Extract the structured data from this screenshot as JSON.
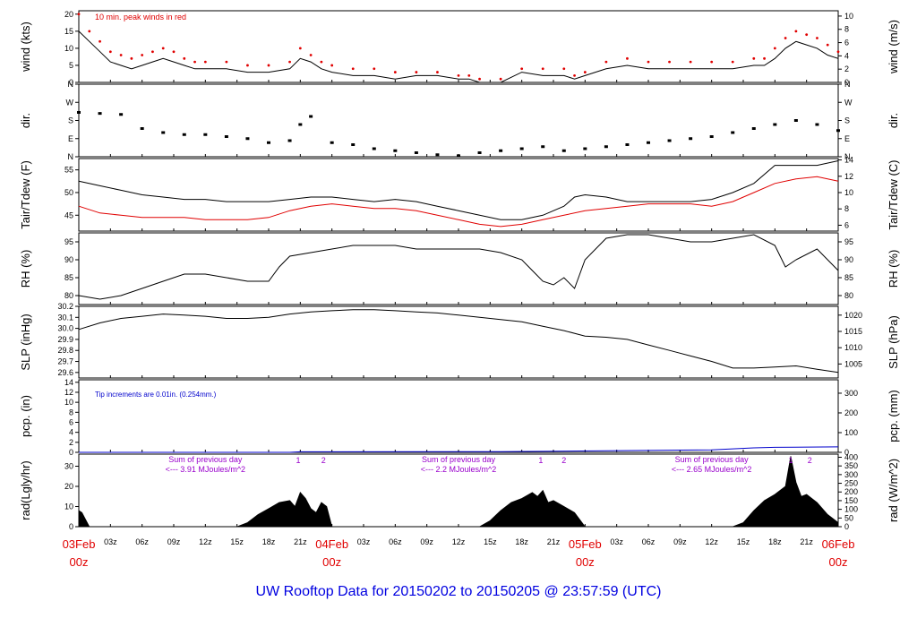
{
  "title": "UW Rooftop Data for 20150202  to  20150205 @ 23:57:59  (UTC)",
  "colors": {
    "title": "#0000e0",
    "red": "#e00000",
    "blue": "#0000cc",
    "purple": "#9900cc",
    "black": "#000000"
  },
  "x_axis": {
    "day_labels": [
      {
        "date": "03Feb",
        "time": "00z",
        "hour": 0
      },
      {
        "date": "04Feb",
        "time": "00z",
        "hour": 24
      },
      {
        "date": "05Feb",
        "time": "00z",
        "hour": 48
      },
      {
        "date": "06Feb",
        "time": "00z",
        "hour": 72
      }
    ],
    "hour_ticks": [
      {
        "h": 3,
        "t": "03z"
      },
      {
        "h": 6,
        "t": "06z"
      },
      {
        "h": 9,
        "t": "09z"
      },
      {
        "h": 12,
        "t": "12z"
      },
      {
        "h": 15,
        "t": "15z"
      },
      {
        "h": 18,
        "t": "18z"
      },
      {
        "h": 21,
        "t": "21z"
      },
      {
        "h": 27,
        "t": "03z"
      },
      {
        "h": 30,
        "t": "06z"
      },
      {
        "h": 33,
        "t": "09z"
      },
      {
        "h": 36,
        "t": "12z"
      },
      {
        "h": 39,
        "t": "15z"
      },
      {
        "h": 42,
        "t": "18z"
      },
      {
        "h": 45,
        "t": "21z"
      },
      {
        "h": 51,
        "t": "03z"
      },
      {
        "h": 54,
        "t": "06z"
      },
      {
        "h": 57,
        "t": "09z"
      },
      {
        "h": 60,
        "t": "12z"
      },
      {
        "h": 63,
        "t": "15z"
      },
      {
        "h": 66,
        "t": "18z"
      },
      {
        "h": 69,
        "t": "21z"
      }
    ]
  },
  "panels": {
    "wind": {
      "left_label": "wind (kts)",
      "right_label": "wind (m/s)",
      "left_ticks": [
        "0",
        "5",
        "10",
        "15",
        "20"
      ],
      "right_ticks": [
        "0",
        "2",
        "4",
        "6",
        "8",
        "10"
      ],
      "annotation": "10 min. peak winds in red"
    },
    "dir": {
      "left_label": "dir.",
      "right_label": "dir.",
      "left_ticks": [
        "N",
        "E",
        "S",
        "W",
        "N"
      ],
      "right_ticks": [
        "N",
        "E",
        "S",
        "W",
        "N"
      ]
    },
    "temp": {
      "left_label": "Tair/Tdew (F)",
      "right_label": "Tair/Tdew (C)",
      "left_ticks": [
        "45",
        "50",
        "55"
      ],
      "right_ticks": [
        "6",
        "8",
        "10",
        "12",
        "14"
      ]
    },
    "rh": {
      "left_label": "RH (%)",
      "right_label": "RH (%)",
      "left_ticks": [
        "80",
        "85",
        "90",
        "95"
      ],
      "right_ticks": [
        "80",
        "85",
        "90",
        "95"
      ]
    },
    "slp": {
      "left_label": "SLP (inHg)",
      "right_label": "SLP (hPa)",
      "left_ticks": [
        "29.6",
        "29.7",
        "29.8",
        "29.9",
        "30.0",
        "30.1",
        "30.2"
      ],
      "right_ticks": [
        "1005",
        "1010",
        "1015",
        "1020"
      ]
    },
    "pcp": {
      "left_label": "pcp. (in)",
      "right_label": "pcp. (mm)",
      "left_ticks": [
        "0",
        "2",
        "4",
        "6",
        "8",
        "10",
        "12",
        "14"
      ],
      "right_ticks": [
        "0",
        "100",
        "200",
        "300"
      ],
      "annotation": "Tip increments are 0.01in. (0.254mm.)"
    },
    "rad": {
      "left_label": "rad(Lgly/hr)",
      "right_label": "rad (W/m^2)",
      "left_ticks": [
        "0",
        "10",
        "20",
        "30"
      ],
      "right_ticks": [
        "0",
        "50",
        "100",
        "150",
        "200",
        "250",
        "300",
        "350",
        "400"
      ],
      "sums": [
        {
          "line1": "Sum of previous day",
          "line2": "<--- 3.91 MJoules/m^2",
          "hour": 12
        },
        {
          "line1": "Sum of previous day",
          "line2": "<--- 2.2 MJoules/m^2",
          "hour": 36
        },
        {
          "line1": "Sum of previous day",
          "line2": "<--- 2.65 MJoules/m^2",
          "hour": 60
        }
      ],
      "markers": [
        {
          "text": "1",
          "hour": 20.8
        },
        {
          "text": "2",
          "hour": 23.2
        },
        {
          "text": "1",
          "hour": 43.8
        },
        {
          "text": "2",
          "hour": 46.0
        },
        {
          "text": "1",
          "hour": 67.5
        },
        {
          "text": "2",
          "hour": 69.3
        }
      ]
    }
  },
  "chart_data": [
    {
      "type": "line",
      "panel": "wind",
      "ylabel": "wind (kts)",
      "ylim": [
        0,
        21
      ],
      "series": [
        {
          "name": "wind",
          "x": [
            0,
            1,
            2,
            3,
            4,
            5,
            6,
            7,
            8,
            9,
            10,
            11,
            12,
            14,
            16,
            18,
            20,
            21,
            22,
            23,
            24,
            26,
            28,
            30,
            32,
            34,
            36,
            37,
            38,
            40,
            42,
            44,
            46,
            47,
            48,
            50,
            52,
            54,
            56,
            58,
            60,
            62,
            64,
            65,
            66,
            67,
            68,
            69,
            70,
            71,
            72
          ],
          "y": [
            15,
            12,
            9,
            6,
            5,
            4,
            5,
            6,
            7,
            6,
            5,
            4,
            4,
            4,
            3,
            3,
            4,
            7,
            6,
            4,
            3,
            2,
            2,
            1,
            2,
            2,
            1,
            1,
            0,
            0,
            3,
            2,
            2,
            1,
            2,
            4,
            5,
            4,
            4,
            4,
            4,
            4,
            5,
            5,
            7,
            10,
            12,
            11,
            10,
            8,
            7
          ]
        },
        {
          "name": "10 min. peak winds",
          "x": [
            0,
            1,
            2,
            3,
            4,
            5,
            6,
            7,
            8,
            9,
            10,
            11,
            12,
            14,
            16,
            18,
            20,
            21,
            22,
            23,
            24,
            26,
            28,
            30,
            32,
            34,
            36,
            37,
            38,
            40,
            42,
            44,
            46,
            47,
            48,
            50,
            52,
            54,
            56,
            58,
            60,
            62,
            64,
            65,
            66,
            67,
            68,
            69,
            70,
            71,
            72
          ],
          "y": [
            20,
            15,
            12,
            9,
            8,
            7,
            8,
            9,
            10,
            9,
            7,
            6,
            6,
            6,
            5,
            5,
            6,
            10,
            8,
            6,
            5,
            4,
            4,
            3,
            3,
            3,
            2,
            2,
            1,
            1,
            4,
            4,
            4,
            2,
            3,
            6,
            7,
            6,
            6,
            6,
            6,
            6,
            7,
            7,
            10,
            13,
            15,
            14,
            13,
            11,
            9
          ]
        }
      ]
    },
    {
      "type": "scatter",
      "panel": "dir",
      "ylabel": "dir.",
      "yticks": [
        "N",
        "E",
        "S",
        "W",
        "N"
      ],
      "series": [
        {
          "name": "dir",
          "x": [
            0,
            2,
            4,
            6,
            8,
            10,
            12,
            14,
            16,
            18,
            20,
            21,
            22,
            24,
            26,
            28,
            30,
            32,
            34,
            36,
            38,
            40,
            42,
            44,
            46,
            48,
            50,
            52,
            54,
            56,
            58,
            60,
            62,
            64,
            66,
            68,
            70,
            72
          ],
          "y": [
            220,
            215,
            210,
            140,
            120,
            110,
            110,
            100,
            90,
            70,
            80,
            160,
            200,
            70,
            60,
            40,
            30,
            20,
            10,
            5,
            20,
            30,
            40,
            50,
            30,
            40,
            50,
            60,
            70,
            80,
            90,
            100,
            120,
            140,
            160,
            180,
            160,
            130
          ]
        }
      ]
    },
    {
      "type": "line",
      "panel": "temp",
      "ylabel": "Tair/Tdew (F)",
      "ylim": [
        41.5,
        57.5
      ],
      "series": [
        {
          "name": "Tair",
          "x": [
            0,
            2,
            4,
            6,
            8,
            10,
            12,
            14,
            16,
            18,
            20,
            22,
            24,
            26,
            28,
            30,
            32,
            34,
            36,
            38,
            40,
            42,
            44,
            46,
            47,
            48,
            50,
            52,
            54,
            56,
            58,
            60,
            62,
            64,
            66,
            68,
            70,
            72
          ],
          "y": [
            52.5,
            51.5,
            50.5,
            49.5,
            49,
            48.5,
            48.5,
            48,
            48,
            48,
            48.5,
            49,
            49,
            48.5,
            48,
            48.5,
            48,
            47,
            46,
            45,
            44,
            44,
            45,
            47,
            49,
            49.5,
            49,
            48,
            48,
            48,
            48,
            48.5,
            50,
            52,
            56,
            56,
            56,
            57
          ]
        },
        {
          "name": "Tdew",
          "x": [
            0,
            2,
            4,
            6,
            8,
            10,
            12,
            14,
            16,
            18,
            20,
            22,
            24,
            26,
            28,
            30,
            32,
            34,
            36,
            38,
            40,
            42,
            44,
            46,
            48,
            50,
            52,
            54,
            56,
            58,
            60,
            62,
            64,
            66,
            68,
            70,
            72
          ],
          "y": [
            47,
            45.5,
            45,
            44.5,
            44.5,
            44.5,
            44,
            44,
            44,
            44.5,
            46,
            47,
            47.5,
            47,
            46.5,
            46.5,
            46,
            45,
            44,
            43,
            42.5,
            43,
            44,
            45,
            46,
            46.5,
            47,
            47.5,
            47.5,
            47.5,
            47,
            48,
            50,
            52,
            53,
            53.5,
            52.5
          ]
        }
      ]
    },
    {
      "type": "line",
      "panel": "rh",
      "ylabel": "RH (%)",
      "ylim": [
        77.5,
        97.5
      ],
      "series": [
        {
          "name": "RH",
          "x": [
            0,
            2,
            4,
            6,
            8,
            10,
            12,
            14,
            16,
            18,
            19,
            20,
            22,
            24,
            26,
            28,
            30,
            32,
            34,
            36,
            38,
            40,
            42,
            43,
            44,
            45,
            46,
            47,
            48,
            50,
            52,
            54,
            56,
            58,
            60,
            62,
            64,
            66,
            67,
            68,
            70,
            72
          ],
          "y": [
            80,
            79,
            80,
            82,
            84,
            86,
            86,
            85,
            84,
            84,
            88,
            91,
            92,
            93,
            94,
            94,
            94,
            93,
            93,
            93,
            93,
            92,
            90,
            87,
            84,
            83,
            85,
            82,
            90,
            96,
            97,
            97,
            96,
            95,
            95,
            96,
            97,
            94,
            88,
            90,
            93,
            87
          ]
        }
      ]
    },
    {
      "type": "line",
      "panel": "slp",
      "ylabel": "SLP (inHg)",
      "ylim": [
        29.55,
        30.2
      ],
      "series": [
        {
          "name": "SLP",
          "x": [
            0,
            2,
            4,
            6,
            8,
            10,
            12,
            14,
            16,
            18,
            20,
            22,
            24,
            26,
            28,
            30,
            32,
            34,
            36,
            38,
            40,
            42,
            44,
            46,
            48,
            50,
            52,
            54,
            56,
            58,
            60,
            62,
            64,
            66,
            68,
            70,
            72
          ],
          "y": [
            29.99,
            30.05,
            30.09,
            30.11,
            30.13,
            30.12,
            30.11,
            30.09,
            30.09,
            30.1,
            30.13,
            30.15,
            30.16,
            30.17,
            30.17,
            30.16,
            30.15,
            30.14,
            30.12,
            30.1,
            30.08,
            30.06,
            30.02,
            29.98,
            29.93,
            29.92,
            29.9,
            29.85,
            29.8,
            29.75,
            29.7,
            29.64,
            29.64,
            29.65,
            29.66,
            29.63,
            29.6
          ]
        }
      ]
    },
    {
      "type": "line",
      "panel": "pcp",
      "ylabel": "pcp. (in)",
      "ylim": [
        0,
        14
      ],
      "series": [
        {
          "name": "pcp",
          "x": [
            0,
            20,
            21,
            40,
            44,
            50,
            60,
            62,
            64,
            66,
            72
          ],
          "y": [
            0,
            0,
            0.1,
            0.15,
            0.2,
            0.3,
            0.5,
            0.7,
            0.9,
            1.0,
            1.1
          ]
        }
      ]
    },
    {
      "type": "area",
      "panel": "rad",
      "ylabel": "rad(Lgly/hr)",
      "ylim": [
        0,
        35
      ],
      "series": [
        {
          "name": "rad",
          "x": [
            0,
            0.3,
            1,
            15,
            16,
            17,
            18,
            19,
            20,
            20.5,
            21,
            21.5,
            22,
            22.5,
            23,
            23.5,
            24,
            38,
            39,
            40,
            41,
            42,
            43,
            43.5,
            44,
            44.5,
            45,
            46,
            47,
            48,
            62,
            63,
            64,
            65,
            66,
            67,
            67.5,
            68,
            68.5,
            69,
            70,
            71,
            72
          ],
          "y": [
            8,
            7,
            0,
            0,
            2,
            6,
            9,
            12,
            13,
            10,
            17,
            14,
            9,
            7,
            12,
            10,
            0,
            0,
            3,
            8,
            12,
            14,
            17,
            15,
            18,
            12,
            13,
            10,
            7,
            0,
            0,
            2,
            8,
            13,
            16,
            20,
            35,
            22,
            15,
            16,
            12,
            6,
            2
          ]
        }
      ]
    }
  ]
}
